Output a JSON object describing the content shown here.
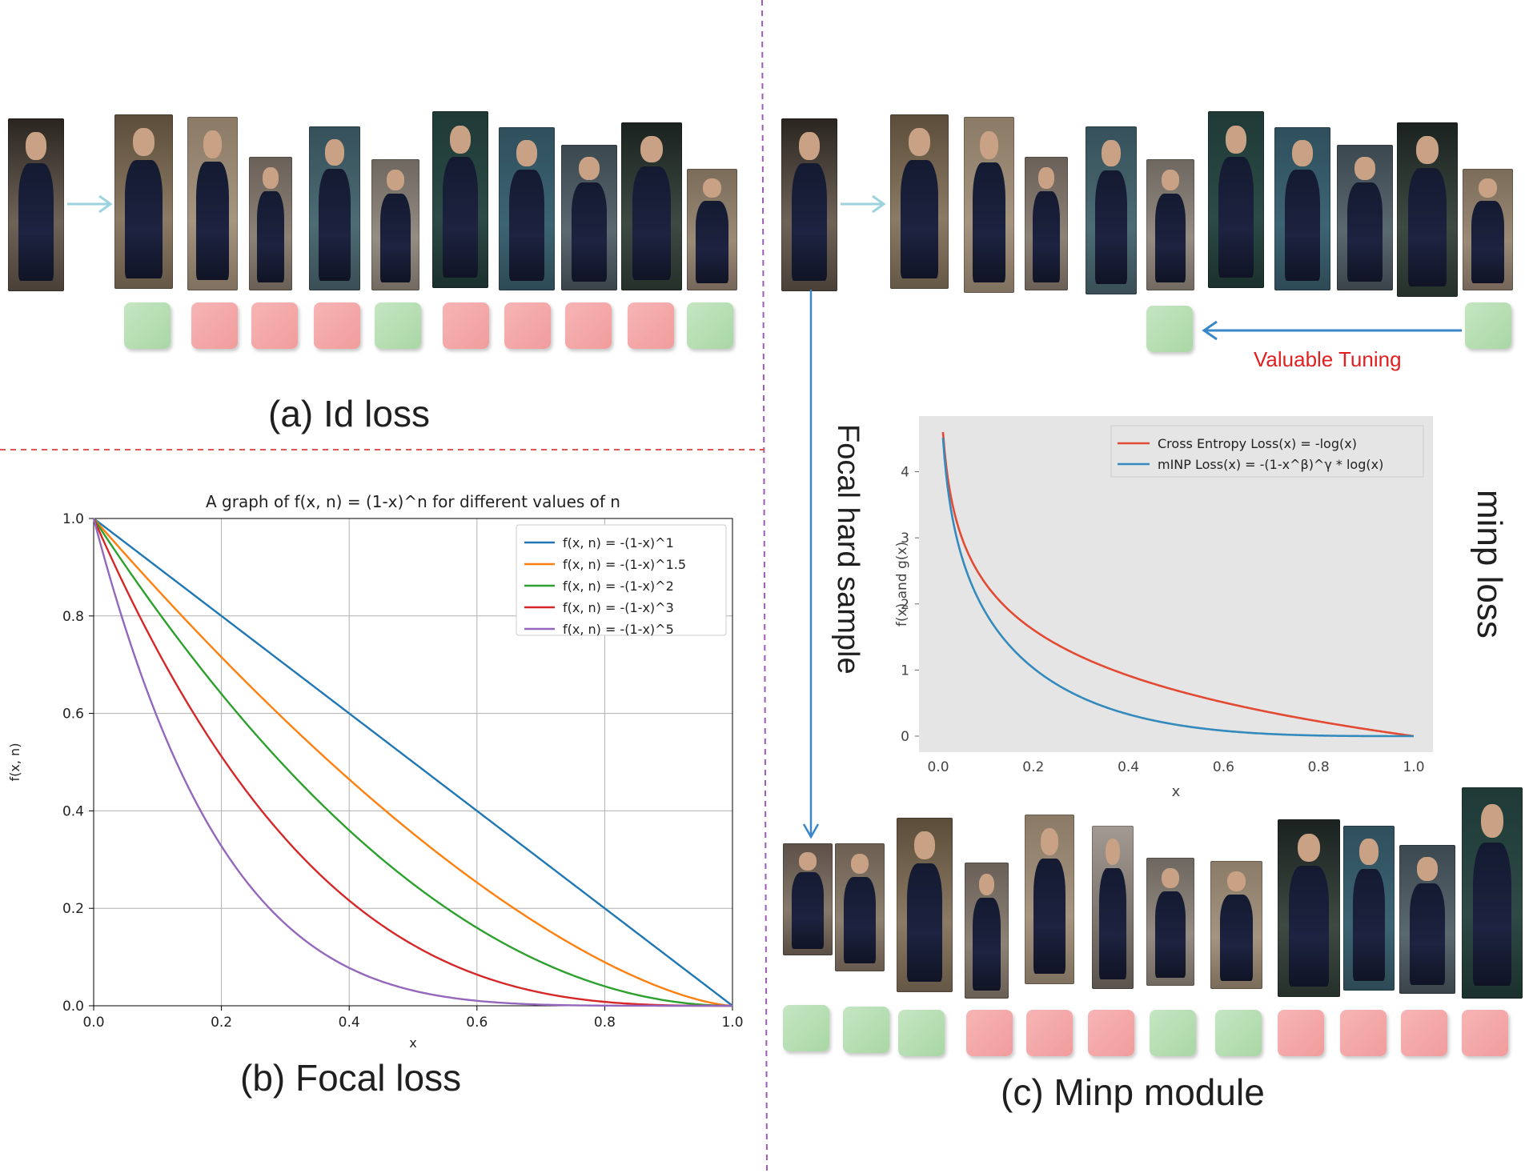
{
  "panels": {
    "a_caption": "(a) Id loss",
    "b_caption": "(b) Focal loss",
    "c_caption": "(c) Minp module",
    "focal_hard_sample": "Focal hard sample",
    "minp_loss": "minp loss",
    "valuable_tuning": "Valuable Tuning"
  },
  "labels": {
    "id_loss_squares": [
      "pos",
      "neg",
      "neg",
      "neg",
      "pos",
      "neg",
      "neg",
      "neg",
      "neg",
      "pos"
    ],
    "minp_module_squares": [
      "pos",
      "pos",
      "pos",
      "neg",
      "neg",
      "neg",
      "pos",
      "pos",
      "neg",
      "neg",
      "neg",
      "neg"
    ]
  },
  "colors": {
    "positive": "#b2dcae",
    "negative": "#f4a6a6",
    "arrow_blue": "#3a87c8",
    "divider_purple": "#9c5bb8",
    "divider_red": "#e05656"
  },
  "chart_data": [
    {
      "type": "line",
      "title": "A graph of f(x, n) = (1-x)^n for different values of n",
      "xlabel": "x",
      "ylabel": "f(x, n)",
      "xlim": [
        0.0,
        1.0
      ],
      "ylim": [
        0.0,
        1.0
      ],
      "xticks": [
        "0.0",
        "0.2",
        "0.4",
        "0.6",
        "0.8",
        "1.0"
      ],
      "yticks": [
        "0.0",
        "0.2",
        "0.4",
        "0.6",
        "0.8",
        "1.0"
      ],
      "grid": true,
      "legend_position": "top-right",
      "series": [
        {
          "name": "f(x, n) = -(1-x)^1",
          "n": 1,
          "color": "#1f77b4"
        },
        {
          "name": "f(x, n) = -(1-x)^1.5",
          "n": 1.5,
          "color": "#ff7f0e"
        },
        {
          "name": "f(x, n) = -(1-x)^2",
          "n": 2,
          "color": "#2ca02c"
        },
        {
          "name": "f(x, n) = -(1-x)^3",
          "n": 3,
          "color": "#d62728"
        },
        {
          "name": "f(x, n) = -(1-x)^5",
          "n": 5,
          "color": "#9467bd"
        }
      ]
    },
    {
      "type": "line",
      "title": "",
      "xlabel": "x",
      "ylabel": "f(x) and g(x)",
      "xlim": [
        0.0,
        1.0
      ],
      "ylim": [
        0,
        4.6
      ],
      "xticks": [
        "0.0",
        "0.2",
        "0.4",
        "0.6",
        "0.8",
        "1.0"
      ],
      "yticks": [
        "0",
        "1",
        "2",
        "3",
        "4"
      ],
      "grid": false,
      "background": "#e5e5e5",
      "legend_position": "top-right",
      "series": [
        {
          "name": "Cross Entropy Loss(x) = -log(x)",
          "kind": "ce",
          "color": "#e24a33"
        },
        {
          "name": "mINP Loss(x) = -(1-x^β)^γ * log(x)",
          "kind": "minp",
          "color": "#348abd"
        }
      ]
    }
  ]
}
